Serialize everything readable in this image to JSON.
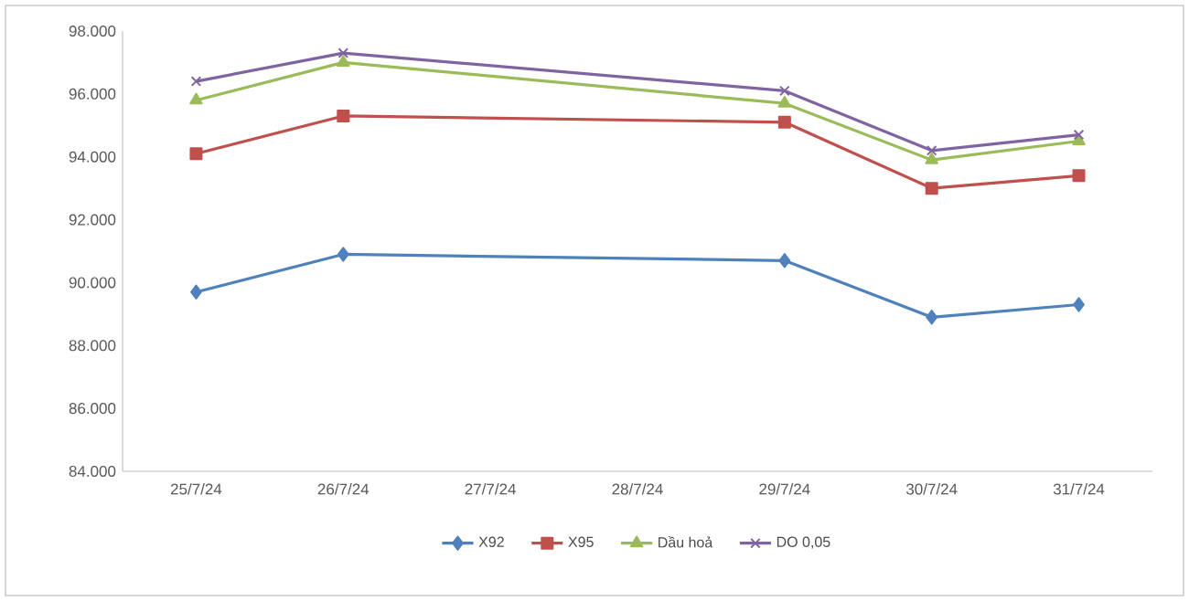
{
  "chart_data": {
    "type": "line",
    "categories": [
      "25/7/24",
      "26/7/24",
      "27/7/24",
      "28/7/24",
      "29/7/24",
      "30/7/24",
      "31/7/24"
    ],
    "series": [
      {
        "name": "X92",
        "color": "#4f81bd",
        "marker": "diamond",
        "values": [
          89.7,
          90.9,
          null,
          null,
          90.7,
          88.9,
          89.3
        ]
      },
      {
        "name": "X95",
        "color": "#c0504d",
        "marker": "square",
        "values": [
          94.1,
          95.3,
          null,
          null,
          95.1,
          93.0,
          93.4
        ]
      },
      {
        "name": "Dầu hoả",
        "color": "#9bbb59",
        "marker": "triangle",
        "values": [
          95.8,
          97.0,
          null,
          null,
          95.7,
          93.9,
          94.5
        ]
      },
      {
        "name": "DO 0,05",
        "color": "#8064a2",
        "marker": "cross",
        "values": [
          96.4,
          97.3,
          null,
          null,
          96.1,
          94.2,
          94.7
        ]
      }
    ],
    "ylim": [
      84,
      98
    ],
    "yticks": [
      {
        "value": 84,
        "label": "84.000"
      },
      {
        "value": 86,
        "label": "86.000"
      },
      {
        "value": 88,
        "label": "88.000"
      },
      {
        "value": 90,
        "label": "90.000"
      },
      {
        "value": 92,
        "label": "92.000"
      },
      {
        "value": 94,
        "label": "94.000"
      },
      {
        "value": 96,
        "label": "96.000"
      },
      {
        "value": 98,
        "label": "98.000"
      }
    ],
    "grid": false,
    "legend": "bottom",
    "line_style": "solid"
  }
}
